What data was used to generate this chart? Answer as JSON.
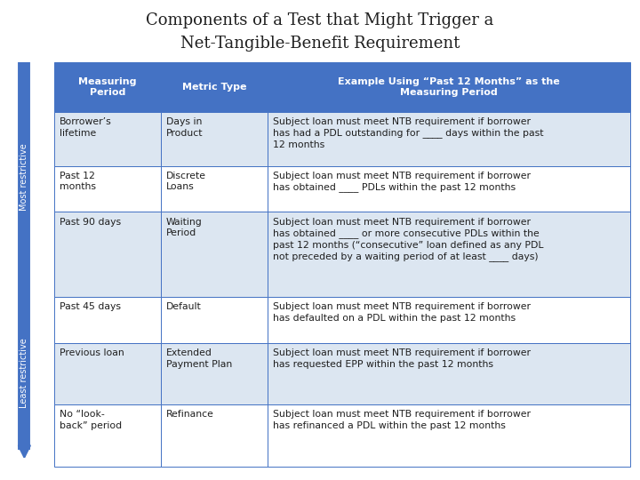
{
  "title_line1": "Components of a Test that Might Trigger a",
  "title_line2": "Net-Tangible-Benefit Requirement",
  "header": [
    "Measuring\nPeriod",
    "Metric Type",
    "Example Using “Past 12 Months” as the\nMeasuring Period"
  ],
  "rows": [
    [
      "Borrower’s\nlifetime",
      "Days in\nProduct",
      "Subject loan must meet NTB requirement if borrower\nhas had a PDL outstanding for ____ days within the past\n12 months"
    ],
    [
      "Past 12\nmonths",
      "Discrete\nLoans",
      "Subject loan must meet NTB requirement if borrower\nhas obtained ____ PDLs within the past 12 months"
    ],
    [
      "Past 90 days",
      "Waiting\nPeriod",
      "Subject loan must meet NTB requirement if borrower\nhas obtained ____ or more consecutive PDLs within the\npast 12 months (“consecutive” loan defined as any PDL\nnot preceded by a waiting period of at least ____ days)"
    ],
    [
      "Past 45 days",
      "Default",
      "Subject loan must meet NTB requirement if borrower\nhas defaulted on a PDL within the past 12 months"
    ],
    [
      "Previous loan",
      "Extended\nPayment Plan",
      "Subject loan must meet NTB requirement if borrower\nhas requested EPP within the past 12 months"
    ],
    [
      "No “look-\nback” period",
      "Refinance",
      "Subject loan must meet NTB requirement if borrower\nhas refinanced a PDL within the past 12 months"
    ]
  ],
  "header_bg": "#4472C4",
  "header_fg": "#FFFFFF",
  "row_bg_light": "#DCE6F1",
  "row_bg_white": "#FFFFFF",
  "border_color": "#4472C4",
  "arrow_color": "#4472C4",
  "sidebar_color": "#4472C4",
  "text_color": "#1F1F1F",
  "background_color": "#FFFFFF",
  "title_color": "#1F1F1F"
}
